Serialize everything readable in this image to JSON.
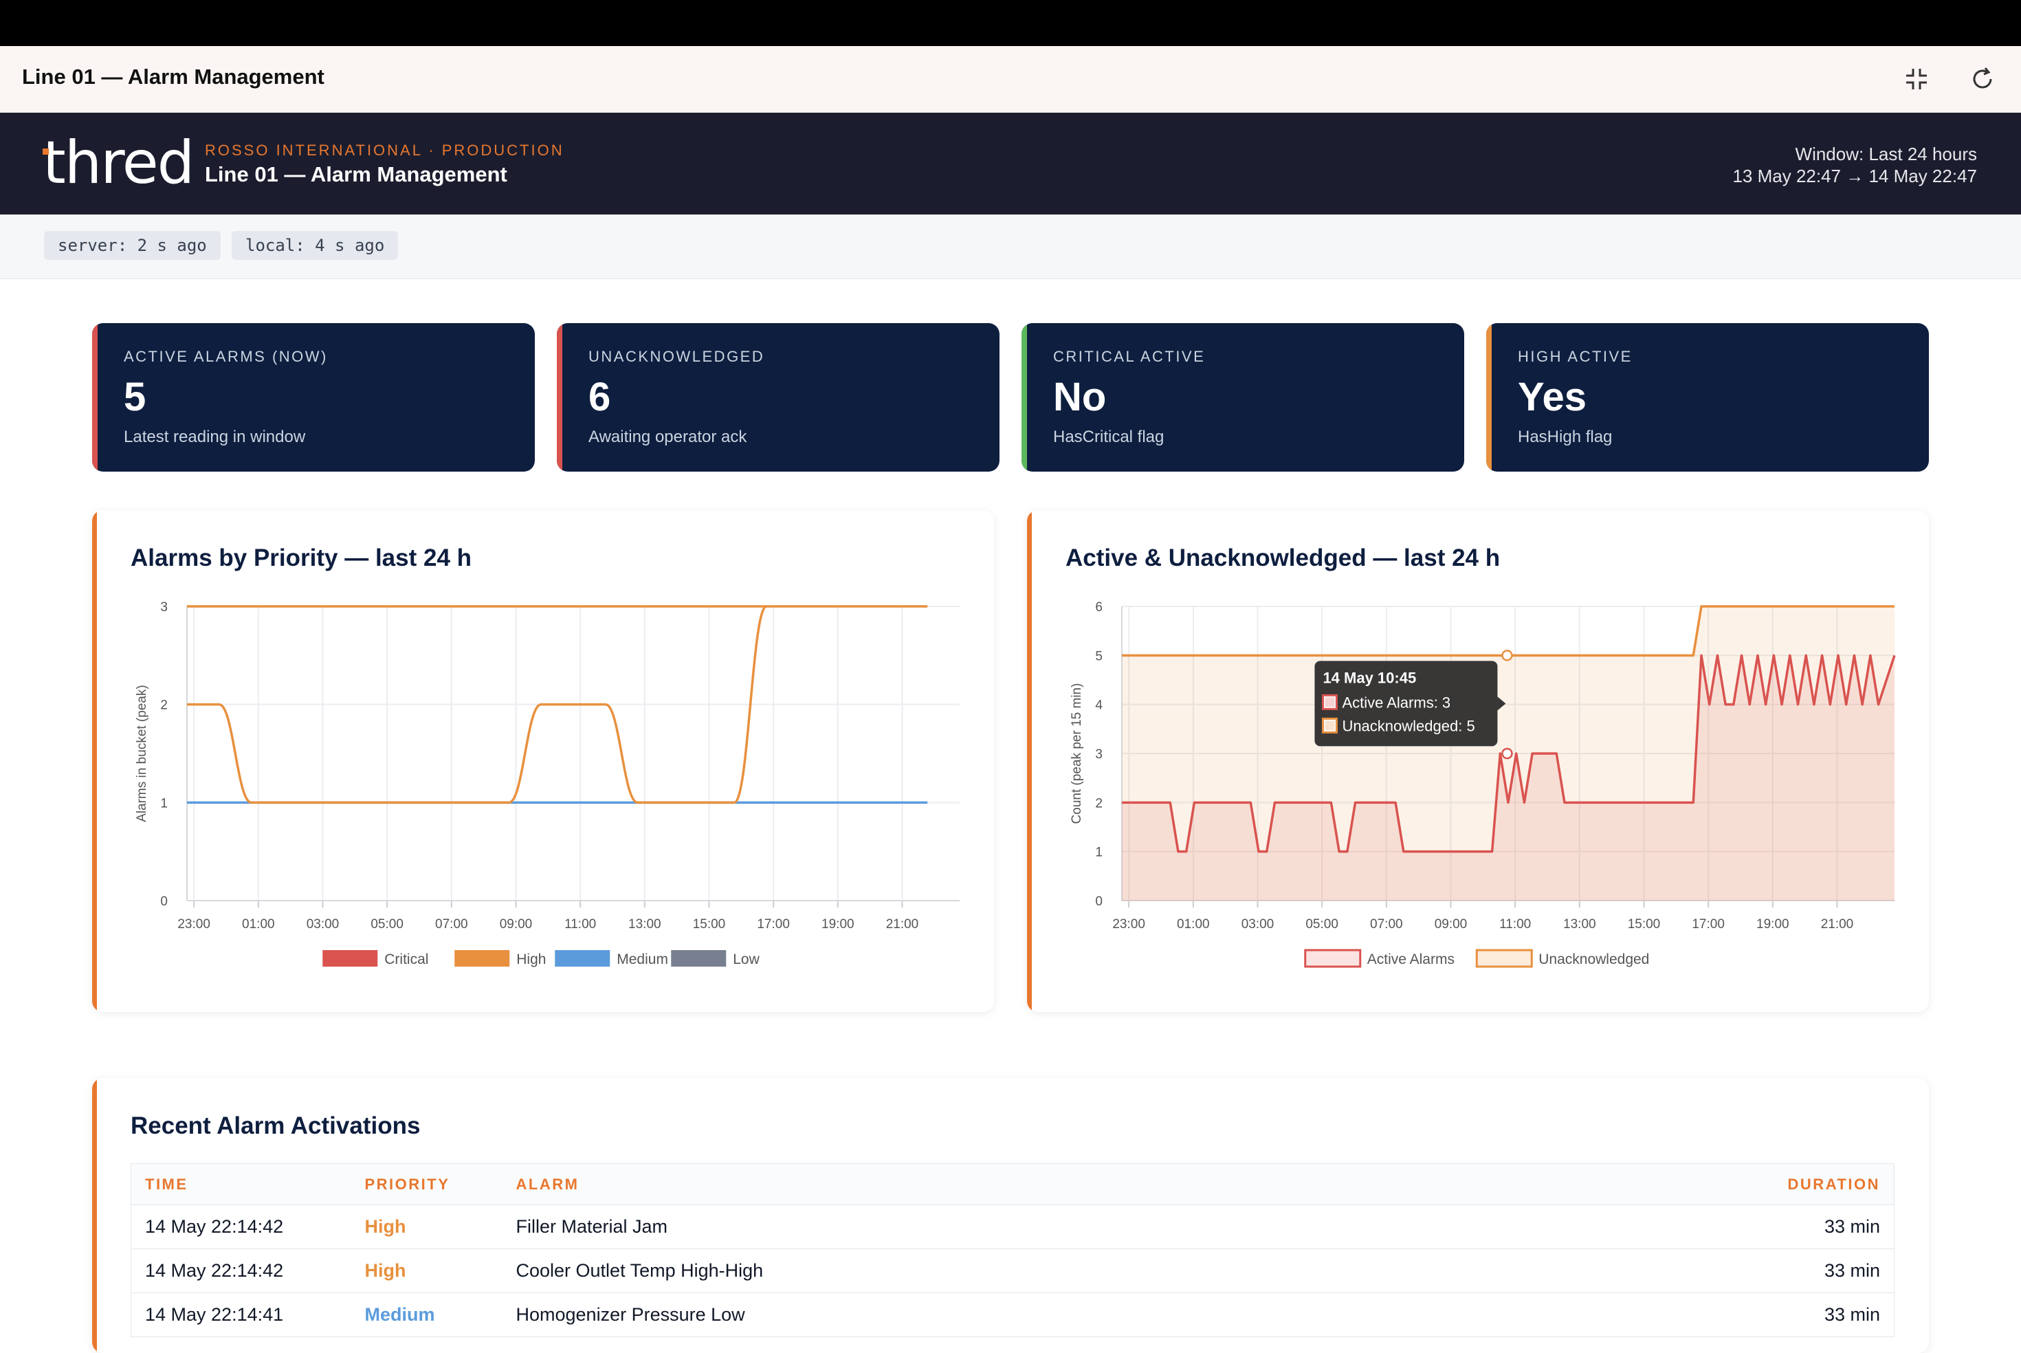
{
  "app": {
    "title": "Line 01 — Alarm Management"
  },
  "header": {
    "logo": "thred",
    "org": "ROSSO INTERNATIONAL · PRODUCTION",
    "title": "Line 01 — Alarm Management",
    "window_label": "Window: Last 24 hours",
    "window_range": "13 May 22:47 → 14 May 22:47"
  },
  "status": {
    "server": "server: 2 s ago",
    "local": "local: 4 s ago"
  },
  "kpis": [
    {
      "label": "ACTIVE ALARMS (NOW)",
      "value": "5",
      "sub": "Latest reading in window",
      "color": "#d9534f"
    },
    {
      "label": "UNACKNOWLEDGED",
      "value": "6",
      "sub": "Awaiting operator ack",
      "color": "#d9534f"
    },
    {
      "label": "CRITICAL ACTIVE",
      "value": "No",
      "sub": "HasCritical flag",
      "color": "#5cb85c"
    },
    {
      "label": "HIGH ACTIVE",
      "value": "Yes",
      "sub": "HasHigh flag",
      "color": "#e8903e"
    }
  ],
  "icons": {
    "collapse": "collapse-icon",
    "refresh": "refresh-icon"
  },
  "chart_data": [
    {
      "type": "line",
      "title": "Alarms by Priority — last 24 h",
      "ylabel": "Alarms in bucket (peak)",
      "ylim": [
        0,
        3
      ],
      "yticks": [
        "0",
        "1",
        "2",
        "3"
      ],
      "xticks": [
        "23:00",
        "01:00",
        "03:00",
        "05:00",
        "07:00",
        "09:00",
        "11:00",
        "13:00",
        "15:00",
        "17:00",
        "19:00",
        "21:00"
      ],
      "x": [
        "22:47",
        "23:47",
        "00:47",
        "01:47",
        "06:47",
        "08:47",
        "09:47",
        "10:47",
        "11:47",
        "12:47",
        "13:47",
        "15:47",
        "16:47",
        "17:47",
        "21:47",
        "22:47"
      ],
      "legend_position": "bottom",
      "series": [
        {
          "name": "Critical",
          "color": "#d9534f",
          "values": [
            0,
            0,
            0,
            0,
            0,
            0,
            0,
            0,
            0,
            0,
            0,
            0,
            0,
            0,
            0,
            0
          ]
        },
        {
          "name": "High",
          "color": "#e8903e",
          "values": [
            2,
            2,
            1,
            1,
            1,
            1,
            2,
            2,
            2,
            1,
            1,
            1,
            3,
            3,
            3,
            3
          ]
        },
        {
          "name": "Medium",
          "color": "#5b9bdc",
          "values": [
            1,
            1,
            1,
            1,
            1,
            1,
            1,
            1,
            1,
            1,
            1,
            1,
            1,
            1,
            1,
            1
          ]
        },
        {
          "name": "Low",
          "color": "#777f90",
          "values": [
            0,
            0,
            0,
            0,
            0,
            0,
            0,
            0,
            0,
            0,
            0,
            0,
            0,
            0,
            0,
            0
          ]
        }
      ]
    },
    {
      "type": "area",
      "title": "Active & Unacknowledged — last 24 h",
      "ylabel": "Count (peak per 15 min)",
      "ylim": [
        0,
        6
      ],
      "yticks": [
        "0",
        "1",
        "2",
        "3",
        "4",
        "5",
        "6"
      ],
      "xticks": [
        "23:00",
        "01:00",
        "03:00",
        "05:00",
        "07:00",
        "09:00",
        "11:00",
        "13:00",
        "15:00",
        "17:00",
        "19:00",
        "21:00"
      ],
      "legend_position": "bottom",
      "series": [
        {
          "name": "Active Alarms",
          "color": "#d9534f",
          "points": [
            [
              "22:47",
              2
            ],
            [
              "00:17",
              2
            ],
            [
              "00:32",
              1
            ],
            [
              "00:47",
              1
            ],
            [
              "01:02",
              2
            ],
            [
              "02:47",
              2
            ],
            [
              "03:02",
              1
            ],
            [
              "03:17",
              1
            ],
            [
              "03:32",
              2
            ],
            [
              "05:17",
              2
            ],
            [
              "05:32",
              1
            ],
            [
              "05:47",
              1
            ],
            [
              "06:02",
              2
            ],
            [
              "07:17",
              2
            ],
            [
              "07:32",
              1
            ],
            [
              "10:17",
              1
            ],
            [
              "10:32",
              3
            ],
            [
              "10:47",
              2
            ],
            [
              "11:02",
              3
            ],
            [
              "11:17",
              2
            ],
            [
              "11:32",
              3
            ],
            [
              "12:17",
              3
            ],
            [
              "12:32",
              2
            ],
            [
              "16:32",
              2
            ],
            [
              "16:47",
              5
            ],
            [
              "17:02",
              4
            ],
            [
              "17:17",
              5
            ],
            [
              "17:32",
              4
            ],
            [
              "17:47",
              4
            ],
            [
              "18:02",
              5
            ],
            [
              "18:17",
              4
            ],
            [
              "18:32",
              5
            ],
            [
              "18:47",
              4
            ],
            [
              "19:02",
              5
            ],
            [
              "19:17",
              4
            ],
            [
              "19:32",
              5
            ],
            [
              "19:47",
              4
            ],
            [
              "20:02",
              5
            ],
            [
              "20:17",
              4
            ],
            [
              "20:32",
              5
            ],
            [
              "20:47",
              4
            ],
            [
              "21:02",
              5
            ],
            [
              "21:17",
              4
            ],
            [
              "21:32",
              5
            ],
            [
              "21:47",
              4
            ],
            [
              "22:02",
              5
            ],
            [
              "22:17",
              4
            ],
            [
              "22:47",
              5
            ]
          ]
        },
        {
          "name": "Unacknowledged",
          "color": "#e8903e",
          "points": [
            [
              "22:47",
              5
            ],
            [
              "16:32",
              5
            ],
            [
              "16:47",
              6
            ],
            [
              "22:47",
              6
            ]
          ]
        }
      ],
      "tooltip": {
        "title": "14 May 10:45",
        "lines": [
          "Active Alarms: 3",
          "Unacknowledged: 5"
        ]
      }
    }
  ],
  "recent": {
    "title": "Recent Alarm Activations",
    "columns": [
      "TIME",
      "PRIORITY",
      "ALARM",
      "DURATION"
    ],
    "rows": [
      {
        "time": "14 May 22:14:42",
        "priority": "High",
        "priority_color": "#e8903e",
        "alarm": "Filler Material Jam",
        "duration": "33 min"
      },
      {
        "time": "14 May 22:14:42",
        "priority": "High",
        "priority_color": "#e8903e",
        "alarm": "Cooler Outlet Temp High-High",
        "duration": "33 min"
      },
      {
        "time": "14 May 22:14:41",
        "priority": "Medium",
        "priority_color": "#5b9bdc",
        "alarm": "Homogenizer Pressure Low",
        "duration": "33 min"
      }
    ]
  }
}
